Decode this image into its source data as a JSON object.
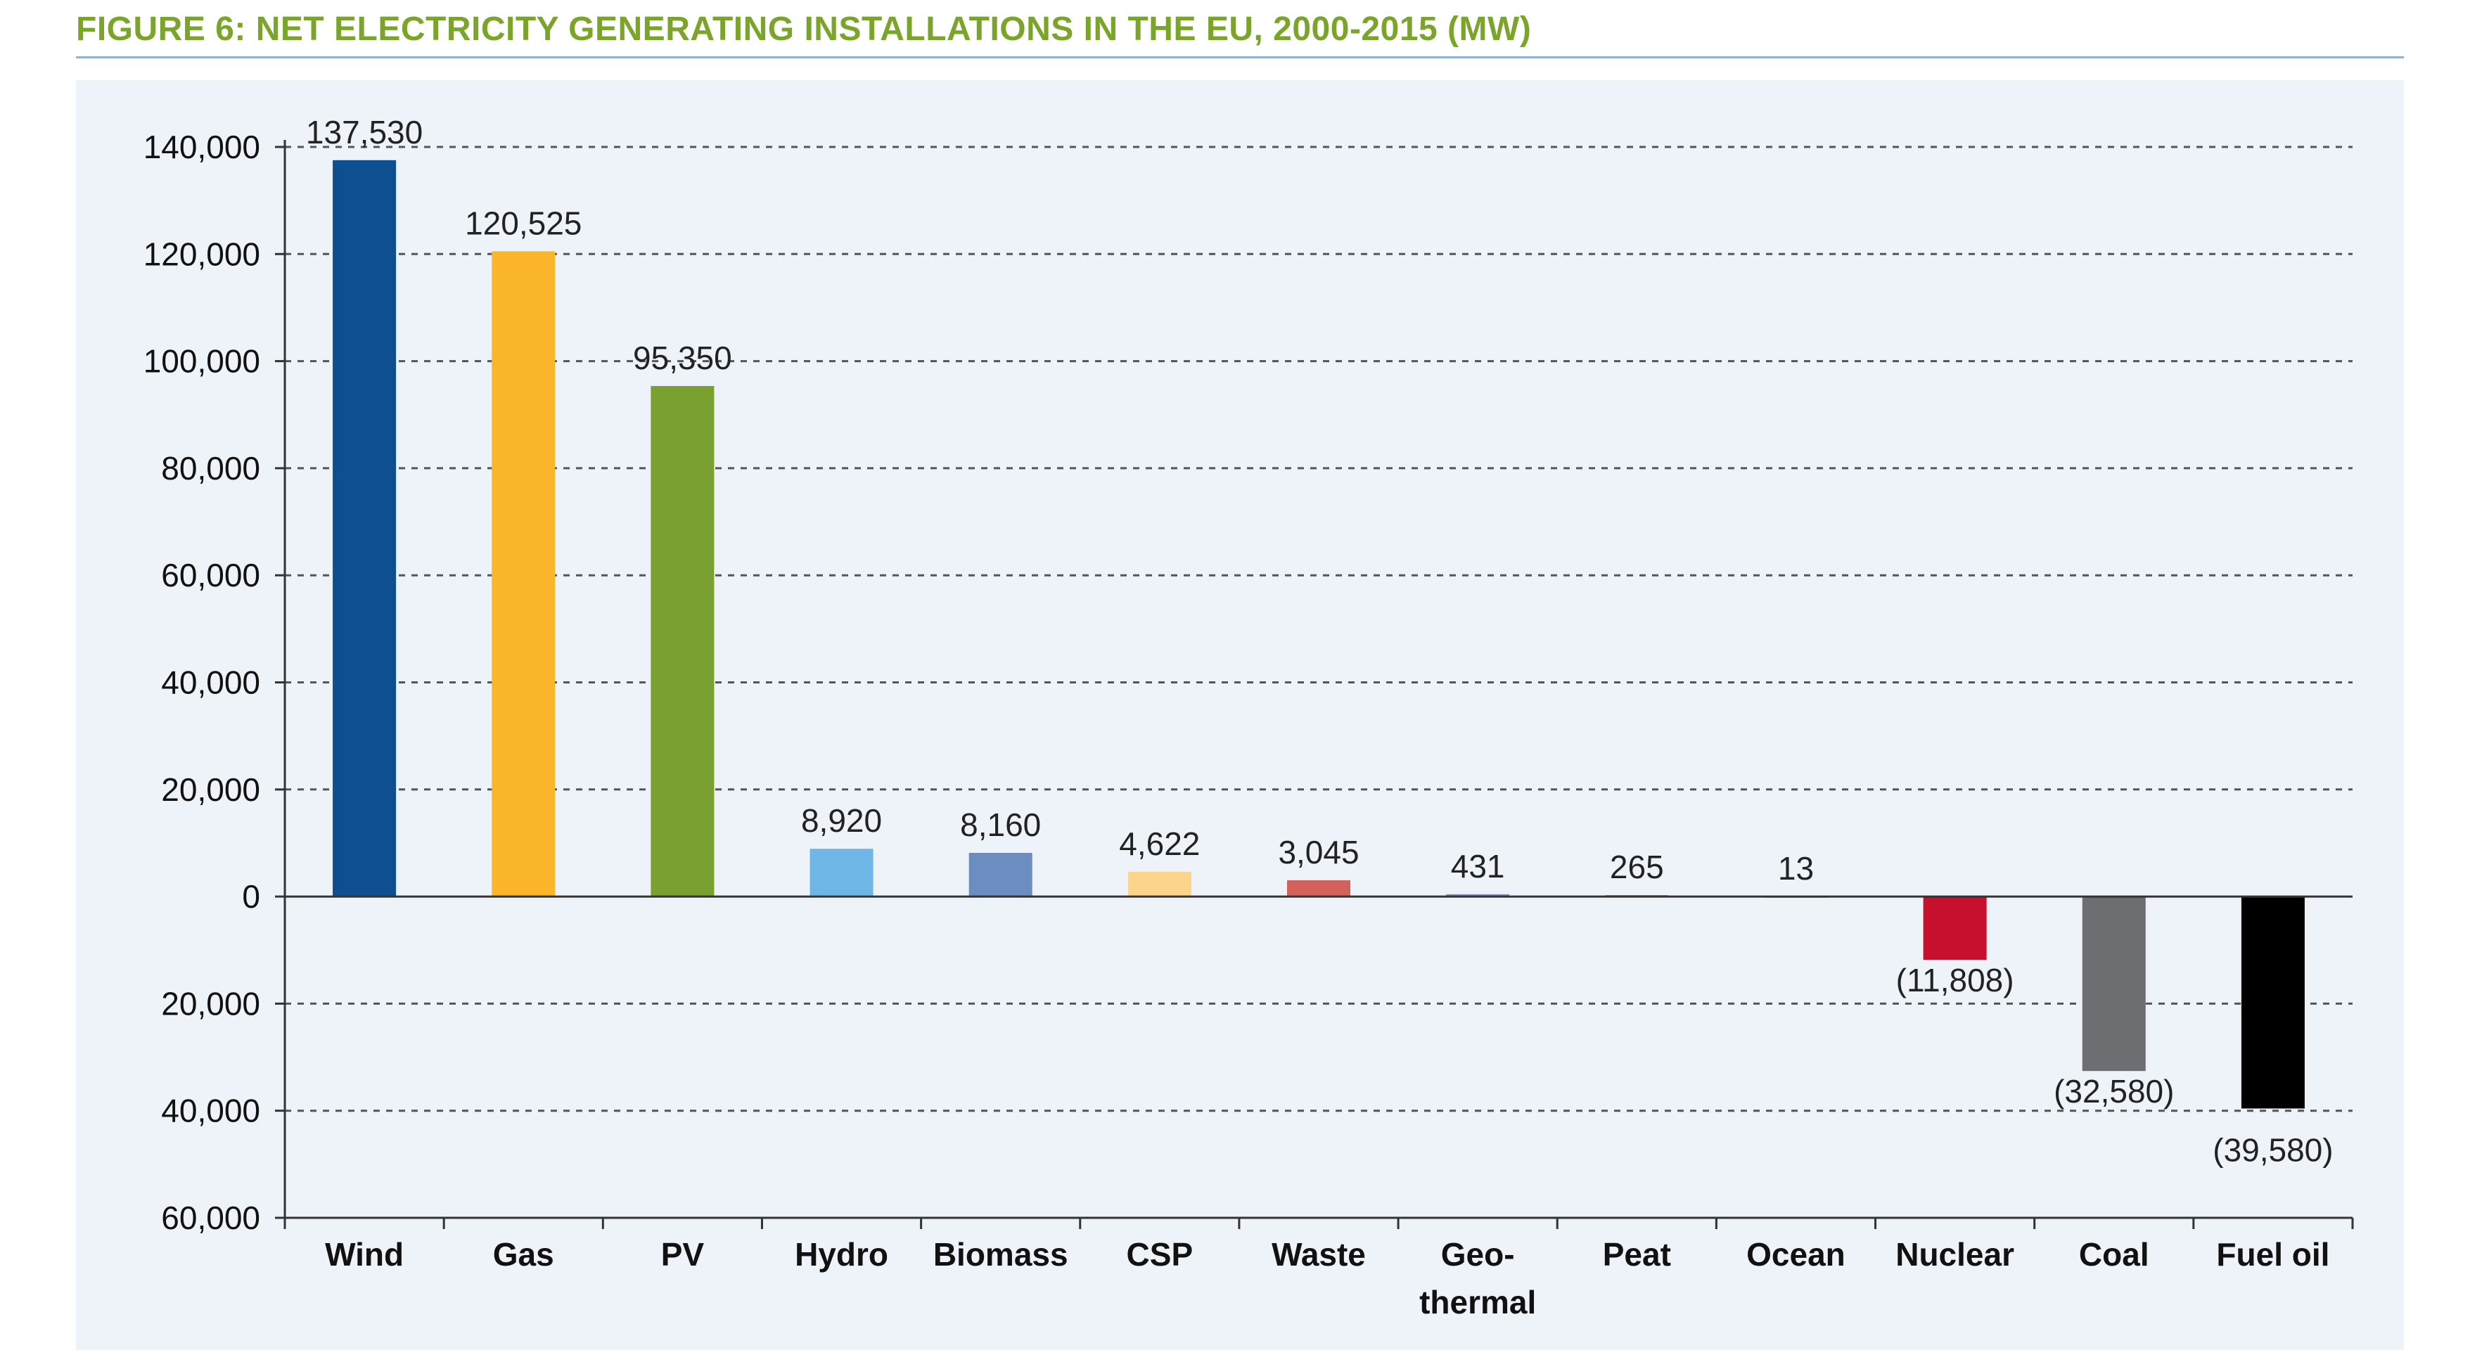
{
  "chart_data": {
    "type": "bar",
    "title": "FIGURE 6: NET ELECTRICITY GENERATING INSTALLATIONS IN THE EU, 2000-2015 (MW)",
    "xlabel": "",
    "ylabel": "",
    "ylim": [
      -60000,
      140000
    ],
    "yticks": [
      140000,
      120000,
      100000,
      80000,
      60000,
      40000,
      20000,
      0,
      -20000,
      -40000,
      -60000
    ],
    "ytick_labels": [
      "140,000",
      "120,000",
      "100,000",
      "80,000",
      "60,000",
      "40,000",
      "20,000",
      "0",
      "20,000",
      "40,000",
      "60,000"
    ],
    "grid": "horizontal dashed",
    "legend": "none",
    "categories": [
      "Wind",
      "Gas",
      "PV",
      "Hydro",
      "Biomass",
      "CSP",
      "Waste",
      "Geo-\nthermal",
      "Peat",
      "Ocean",
      "Nuclear",
      "Coal",
      "Fuel oil"
    ],
    "values": [
      137530,
      120525,
      95350,
      8920,
      8160,
      4622,
      3045,
      431,
      265,
      13,
      -11808,
      -32580,
      -39580
    ],
    "data_labels": [
      "137,530",
      "120,525",
      "95,350",
      "8,920",
      "8,160",
      "4,622",
      "3,045",
      "431",
      "265",
      "13",
      "(11,808)",
      "(32,580)",
      "(39,580)"
    ],
    "colors": [
      "#0d4f91",
      "#fbb52b",
      "#7aa02f",
      "#6db6e6",
      "#6c8dc0",
      "#fcd48c",
      "#d4625a",
      "#7e8bbd",
      "#8a9a4a",
      "#b8c6c8",
      "#c8102e",
      "#6d6e71",
      "#000000"
    ]
  }
}
